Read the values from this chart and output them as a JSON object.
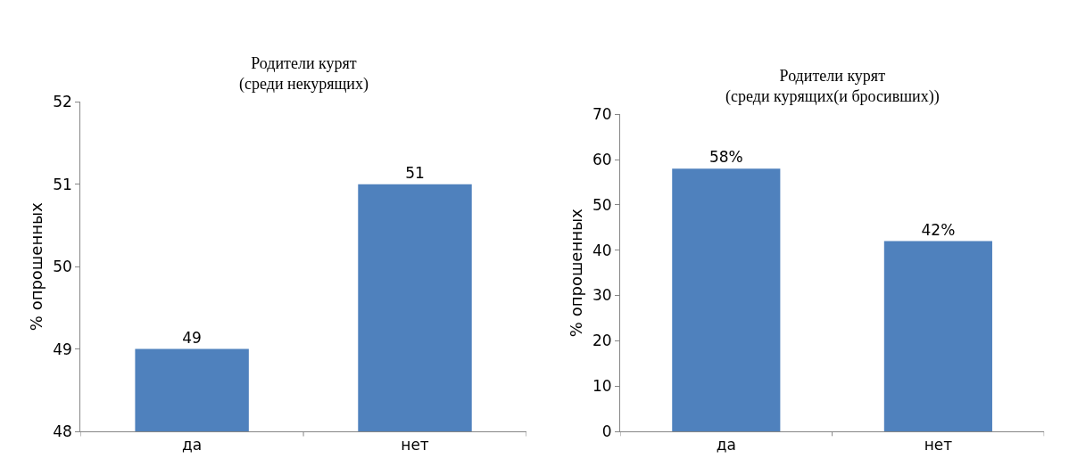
{
  "chart_data": [
    {
      "type": "bar",
      "title": "Родители курят\n(среди некурящих)",
      "ylabel": "% опрошенных",
      "categories": [
        "да",
        "нет"
      ],
      "values": [
        49,
        51
      ],
      "color": "#4f81bd",
      "ylim": [
        48,
        52
      ],
      "yticks": [
        48,
        49,
        50,
        51,
        52
      ],
      "data_labels": true,
      "grid": false
    },
    {
      "type": "bar",
      "title": "Родители курят\n(среди курящих(и бросивших))",
      "ylabel": "% опрошенных",
      "categories": [
        "да",
        "нет"
      ],
      "values": [
        58,
        42
      ],
      "value_labels": [
        "58%",
        "42%"
      ],
      "color": "#4f81bd",
      "ylim": [
        0,
        70
      ],
      "yticks": [
        0,
        10,
        20,
        30,
        40,
        50,
        60,
        70
      ],
      "grid": false
    }
  ]
}
